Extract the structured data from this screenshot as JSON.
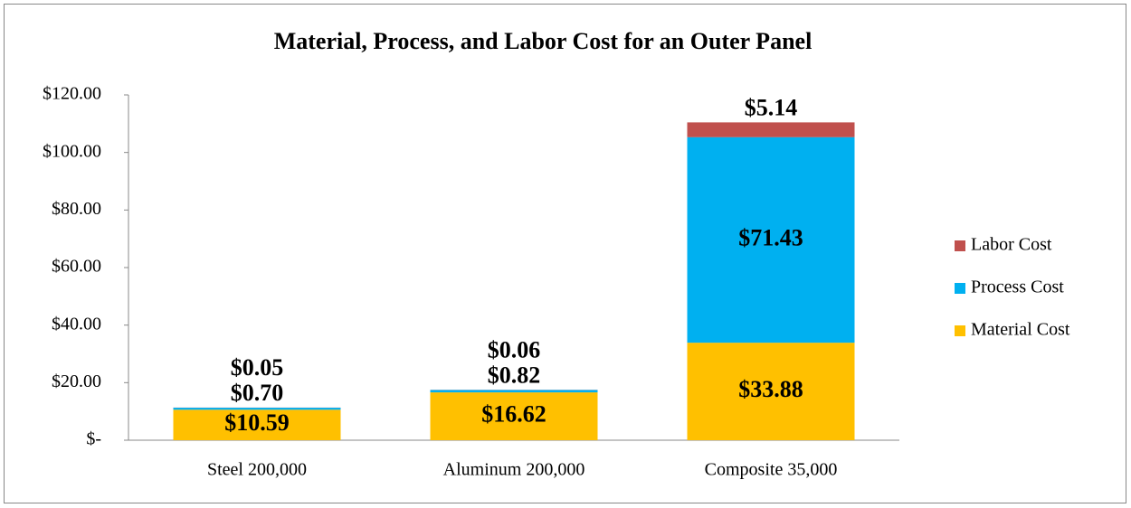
{
  "chart_data": {
    "type": "stacked_bar",
    "title": "Material, Process, and Labor Cost for an Outer Panel",
    "categories": [
      "Steel 200,000",
      "Aluminum 200,000",
      "Composite 35,000"
    ],
    "series": [
      {
        "name": "Material Cost",
        "color": "#ffc000",
        "label_color": "#000000",
        "values": [
          10.59,
          16.62,
          33.88
        ],
        "value_labels": [
          "$10.59",
          "$16.62",
          "$33.88"
        ]
      },
      {
        "name": "Process Cost",
        "color": "#00b0f0",
        "label_color": "#000000",
        "values": [
          0.7,
          0.82,
          71.43
        ],
        "value_labels": [
          "$0.70",
          "$0.82",
          "$71.43"
        ]
      },
      {
        "name": "Labor Cost",
        "color": "#c0504d",
        "label_color": "#c00000",
        "values": [
          0.05,
          0.06,
          5.14
        ],
        "value_labels": [
          "$0.05",
          "$0.06",
          "$5.14"
        ]
      }
    ],
    "ylim": [
      0,
      120
    ],
    "yticks": [
      {
        "value": 0,
        "label": "$-"
      },
      {
        "value": 20,
        "label": "$20.00"
      },
      {
        "value": 40,
        "label": "$40.00"
      },
      {
        "value": 60,
        "label": "$60.00"
      },
      {
        "value": 80,
        "label": "$80.00"
      },
      {
        "value": 100,
        "label": "$100.00"
      },
      {
        "value": 120,
        "label": "$120.00"
      }
    ],
    "legend": "right"
  }
}
